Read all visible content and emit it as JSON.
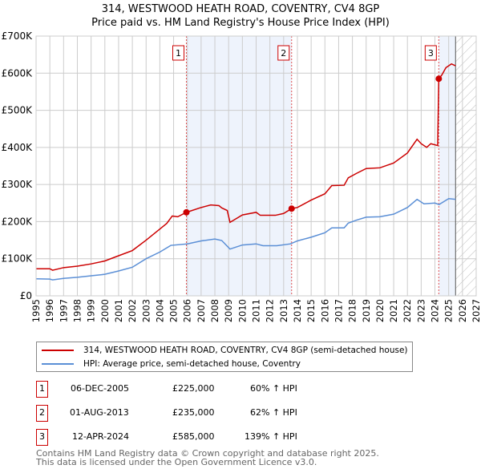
{
  "header": {
    "title": "314, WESTWOOD HEATH ROAD, COVENTRY, CV4 8GP",
    "subtitle": "Price paid vs. HM Land Registry's House Price Index (HPI)"
  },
  "chart_data": {
    "type": "line",
    "title": "314, WESTWOOD HEATH ROAD, COVENTRY, CV4 8GP",
    "subtitle": "Price paid vs. HM Land Registry's House Price Index (HPI)",
    "xlim": [
      1995,
      2027
    ],
    "ylim": [
      0,
      700000
    ],
    "x_ticks": [
      "1995",
      "1996",
      "1997",
      "1998",
      "1999",
      "2000",
      "2001",
      "2002",
      "2003",
      "2004",
      "2005",
      "2006",
      "2007",
      "2008",
      "2009",
      "2010",
      "2011",
      "2012",
      "2013",
      "2014",
      "2015",
      "2016",
      "2017",
      "2018",
      "2019",
      "2020",
      "2021",
      "2022",
      "2023",
      "2024",
      "2025",
      "2026",
      "2027"
    ],
    "y_ticks": [
      {
        "v": 0,
        "label": "£0"
      },
      {
        "v": 100000,
        "label": "£100K"
      },
      {
        "v": 200000,
        "label": "£200K"
      },
      {
        "v": 300000,
        "label": "£300K"
      },
      {
        "v": 400000,
        "label": "£400K"
      },
      {
        "v": 500000,
        "label": "£500K"
      },
      {
        "v": 600000,
        "label": "£600K"
      },
      {
        "v": 700000,
        "label": "£700K"
      }
    ],
    "grid": true,
    "series": [
      {
        "name": "314, WESTWOOD HEATH ROAD, COVENTRY, CV4 8GP (semi-detached house)",
        "color": "#cc0000",
        "points": [
          [
            1995,
            73000
          ],
          [
            1996,
            73000
          ],
          [
            1996.2,
            69000
          ],
          [
            1997,
            76000
          ],
          [
            1998,
            80000
          ],
          [
            1999,
            86000
          ],
          [
            2000,
            94000
          ],
          [
            2001,
            108000
          ],
          [
            2002,
            122000
          ],
          [
            2003,
            150000
          ],
          [
            2004,
            180000
          ],
          [
            2004.5,
            195000
          ],
          [
            2004.9,
            215000
          ],
          [
            2005.3,
            213000
          ],
          [
            2005.93,
            225000
          ],
          [
            2007,
            238000
          ],
          [
            2007.7,
            245000
          ],
          [
            2008.3,
            243000
          ],
          [
            2008.5,
            237000
          ],
          [
            2008.9,
            230000
          ],
          [
            2009.1,
            198000
          ],
          [
            2010,
            218000
          ],
          [
            2011,
            225000
          ],
          [
            2011.3,
            217000
          ],
          [
            2012.4,
            217000
          ],
          [
            2013,
            222000
          ],
          [
            2013.58,
            235000
          ],
          [
            2014,
            238000
          ],
          [
            2015,
            258000
          ],
          [
            2016,
            275000
          ],
          [
            2016.5,
            297000
          ],
          [
            2017.4,
            298000
          ],
          [
            2017.7,
            318000
          ],
          [
            2018.3,
            330000
          ],
          [
            2019,
            343000
          ],
          [
            2020,
            345000
          ],
          [
            2021,
            358000
          ],
          [
            2022,
            385000
          ],
          [
            2022.7,
            422000
          ],
          [
            2023,
            410000
          ],
          [
            2023.4,
            400000
          ],
          [
            2023.7,
            410000
          ],
          [
            2024.2,
            405000
          ],
          [
            2024.28,
            585000
          ],
          [
            2024.5,
            595000
          ],
          [
            2024.8,
            615000
          ],
          [
            2025.2,
            625000
          ],
          [
            2025.5,
            620000
          ]
        ]
      },
      {
        "name": "HPI: Average price, semi-detached house, Coventry",
        "color": "#5b8fd6",
        "points": [
          [
            1995,
            46000
          ],
          [
            1996,
            45000
          ],
          [
            1996.2,
            43000
          ],
          [
            1997,
            47000
          ],
          [
            1998,
            50000
          ],
          [
            1999,
            54000
          ],
          [
            2000,
            58000
          ],
          [
            2001,
            67000
          ],
          [
            2002,
            77000
          ],
          [
            2003,
            100000
          ],
          [
            2004,
            118000
          ],
          [
            2004.8,
            136000
          ],
          [
            2006,
            140000
          ],
          [
            2007,
            148000
          ],
          [
            2008,
            153000
          ],
          [
            2008.5,
            149000
          ],
          [
            2009.1,
            126000
          ],
          [
            2010,
            137000
          ],
          [
            2011,
            140000
          ],
          [
            2011.5,
            135000
          ],
          [
            2012.5,
            135000
          ],
          [
            2013.5,
            140000
          ],
          [
            2014,
            148000
          ],
          [
            2015,
            158000
          ],
          [
            2016,
            170000
          ],
          [
            2016.5,
            183000
          ],
          [
            2017.4,
            183000
          ],
          [
            2017.7,
            196000
          ],
          [
            2018.3,
            204000
          ],
          [
            2019,
            212000
          ],
          [
            2020,
            213000
          ],
          [
            2021,
            220000
          ],
          [
            2022,
            238000
          ],
          [
            2022.7,
            260000
          ],
          [
            2023.2,
            248000
          ],
          [
            2024,
            250000
          ],
          [
            2024.3,
            246000
          ],
          [
            2025,
            262000
          ],
          [
            2025.5,
            260000
          ]
        ]
      }
    ],
    "sales": [
      {
        "id": "1",
        "x": 2005.93,
        "y": 225000,
        "date": "06-DEC-2005",
        "price": "£225,000",
        "hpi": "60% ↑ HPI"
      },
      {
        "id": "2",
        "x": 2013.58,
        "y": 235000,
        "date": "01-AUG-2013",
        "price": "£235,000",
        "hpi": "62% ↑ HPI"
      },
      {
        "id": "3",
        "x": 2024.28,
        "y": 585000,
        "date": "12-APR-2024",
        "price": "£585,000",
        "hpi": "139% ↑ HPI"
      }
    ],
    "future_hatch_from": 2025.5,
    "legend_position": "bottom"
  },
  "footer": {
    "line1": "Contains HM Land Registry data © Crown copyright and database right 2025.",
    "line2": "This data is licensed under the Open Government Licence v3.0."
  }
}
